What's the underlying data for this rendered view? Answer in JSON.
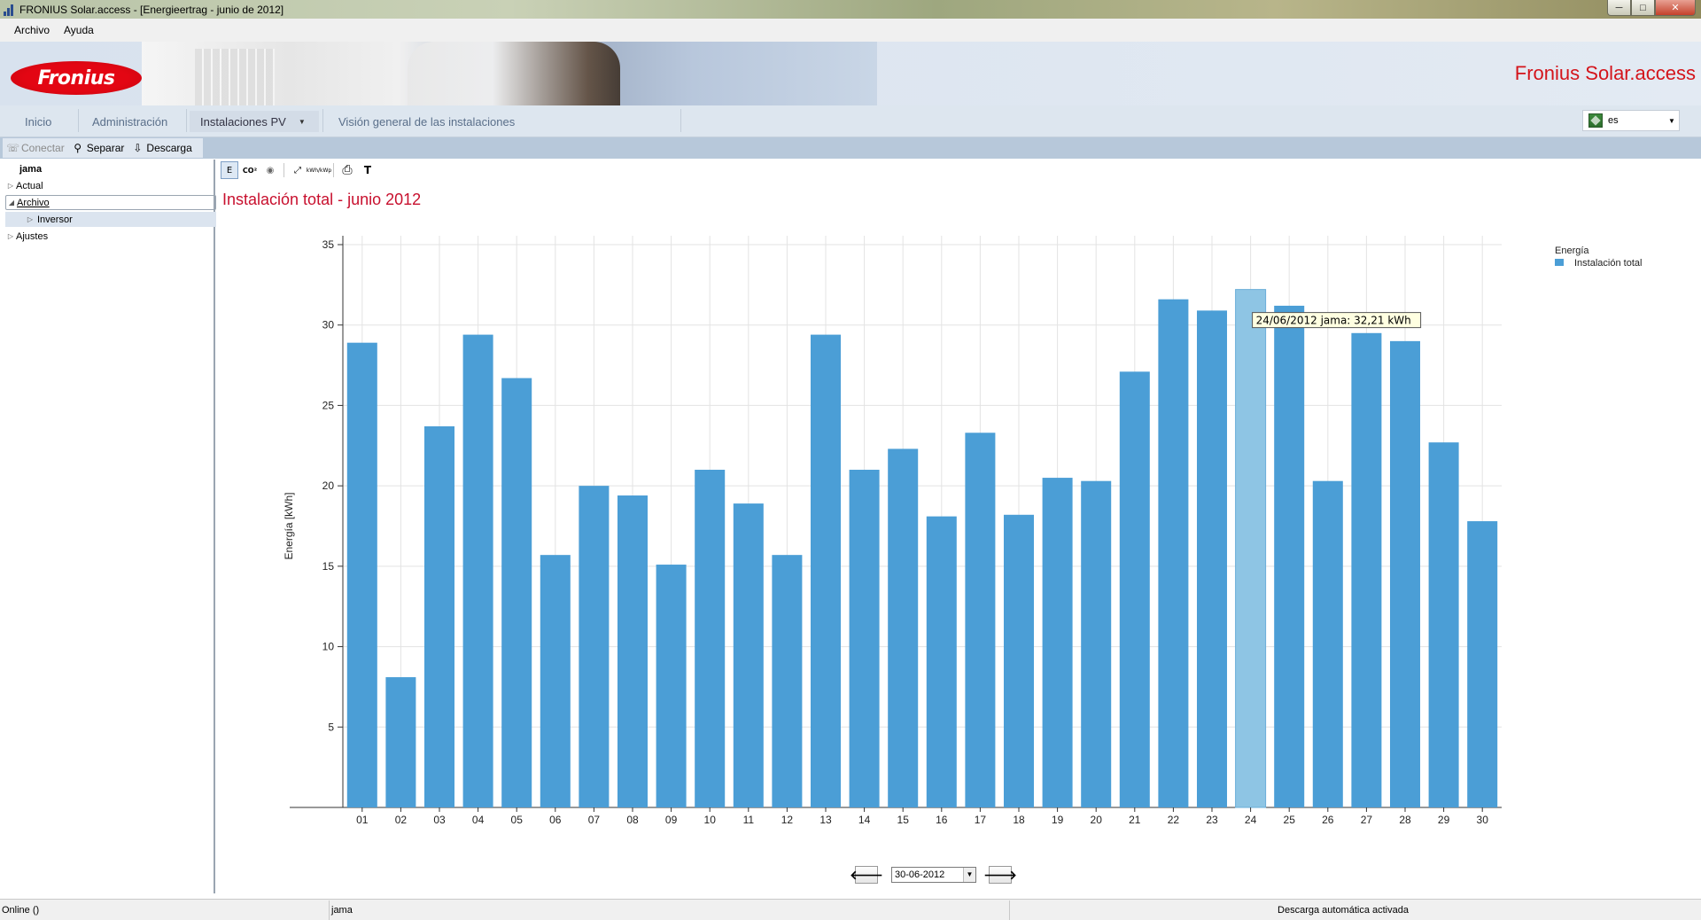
{
  "window": {
    "title": "FRONIUS Solar.access - [Energieertrag - junio de 2012]",
    "minimize": "─",
    "maximize": "□",
    "close": "✕"
  },
  "menu": {
    "items": [
      "Archivo",
      "Ayuda"
    ]
  },
  "banner": {
    "logo_text": "Fronius",
    "brand_text": "Fronius Solar.access"
  },
  "nav": {
    "tabs": [
      "Inicio",
      "Administración",
      "Instalaciones PV",
      "Visión general de las instalaciones"
    ],
    "active_tab": "Instalaciones PV",
    "language": "es"
  },
  "toolbar": {
    "connect": "Conectar",
    "disconnect": "Separar",
    "download": "Descarga"
  },
  "tree": {
    "root": "jama",
    "items": [
      {
        "label": "Actual"
      },
      {
        "label": "Archivo"
      },
      {
        "label": "Inversor"
      },
      {
        "label": "Ajustes"
      }
    ]
  },
  "chart_toolbar": {
    "energy": "E",
    "co2": "CO²",
    "currency": "◉",
    "expand": "⤢",
    "kwh_kwp": "kWh/kWp",
    "print": "⎙",
    "text": "T"
  },
  "content": {
    "title": "Instalación total - junio 2012"
  },
  "chart_data": {
    "type": "bar",
    "ylabel": "Energía [kWh]",
    "xlabel": "",
    "ylim": [
      0,
      35
    ],
    "yticks": [
      5,
      10,
      15,
      20,
      25,
      30,
      35
    ],
    "grid": true,
    "legend_title": "Energía",
    "legend_position": "top-right",
    "categories": [
      "01",
      "02",
      "03",
      "04",
      "05",
      "06",
      "07",
      "08",
      "09",
      "10",
      "11",
      "12",
      "13",
      "14",
      "15",
      "16",
      "17",
      "18",
      "19",
      "20",
      "21",
      "22",
      "23",
      "24",
      "25",
      "26",
      "27",
      "28",
      "29",
      "30"
    ],
    "series": [
      {
        "name": "Instalación total",
        "color": "#4b9ed6",
        "values": [
          28.9,
          8.1,
          23.7,
          29.4,
          26.7,
          15.7,
          20.0,
          19.4,
          15.1,
          21.0,
          18.9,
          15.7,
          29.4,
          21.0,
          22.3,
          18.1,
          23.3,
          18.2,
          20.5,
          20.3,
          27.1,
          31.6,
          30.9,
          32.21,
          31.2,
          20.3,
          29.5,
          29.0,
          22.7,
          17.8
        ]
      }
    ],
    "highlight_index": 23,
    "tooltip": "24/06/2012 jama: 32,21 kWh"
  },
  "datenav": {
    "prev": "🡐",
    "date": "30-06-2012",
    "next": "🡒"
  },
  "status": {
    "left": "Online ()",
    "middle": "jama",
    "right": "Descarga automática activada"
  }
}
